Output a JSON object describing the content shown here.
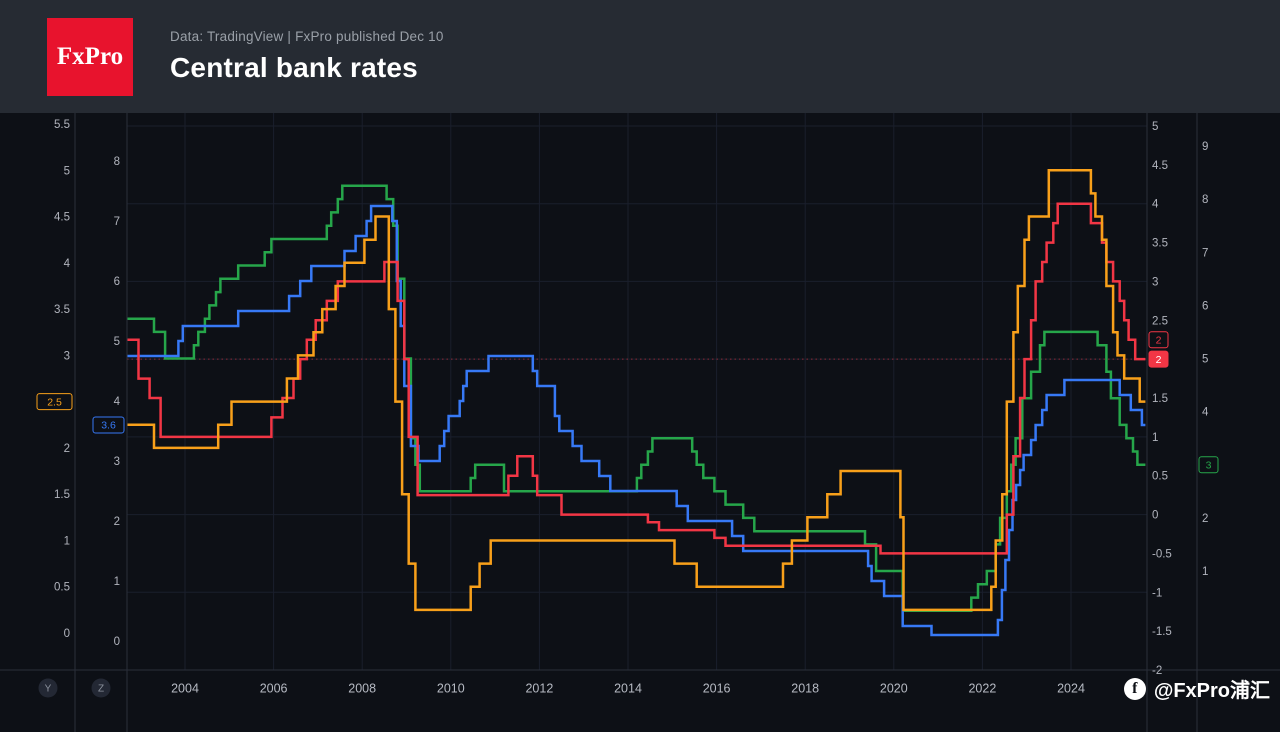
{
  "header": {
    "logo_text": "FxPro",
    "meta": "Data: TradingView  |  FxPro published Dec 10",
    "title": "Central bank rates"
  },
  "watermark": {
    "icon": "facebook-icon",
    "handle": "@FxPro浦汇"
  },
  "scale_buttons": [
    "Y",
    "Z"
  ],
  "colors": {
    "background": "#0d1016",
    "header_bg": "#262b33",
    "logo_red": "#e8132d",
    "grid": "#1a1f2c",
    "separator": "#2a2f3a",
    "axis_text": "#b2b5be",
    "time_text": "#b6bac3",
    "price_line": "rgba(242,54,69,0.55)",
    "orange": "#f8a01a",
    "blue": "#3779f6",
    "green": "#26a64a",
    "red": "#f23645"
  },
  "chart_data": {
    "type": "line",
    "style": "step",
    "title": "Central bank rates",
    "grid": true,
    "legend_position": "none",
    "x_axis": {
      "years": [
        2004,
        2006,
        2008,
        2010,
        2012,
        2014,
        2016,
        2018,
        2020,
        2022,
        2024
      ],
      "range": [
        2002.7,
        2025.68
      ],
      "end": 2025.68
    },
    "price_line": {
      "axis": "R1",
      "value": 2,
      "style": "dotted"
    },
    "axes": [
      {
        "id": "L1",
        "side": "left",
        "position": "outer",
        "color_key": "orange",
        "range": [
          0,
          5.5
        ],
        "ticks": [
          5.5,
          5,
          4.5,
          4,
          3.5,
          3,
          2.5,
          2,
          1.5,
          1,
          0.5,
          0
        ],
        "badges": [
          {
            "text": "2.5",
            "value": 2.5,
            "style": "outline",
            "replaces_tick": true
          }
        ]
      },
      {
        "id": "L2",
        "side": "left",
        "position": "inner",
        "color_key": "blue",
        "range": [
          0,
          8
        ],
        "ticks": [
          8,
          7,
          6,
          5,
          4,
          3,
          2,
          1,
          0
        ],
        "badges": [
          {
            "text": "3.6",
            "value": 3.6,
            "style": "outline",
            "replaces_tick": false
          }
        ]
      },
      {
        "id": "R1",
        "side": "right",
        "position": "inner",
        "color_key": "red",
        "range": [
          -2,
          5
        ],
        "ticks": [
          5,
          4.5,
          4,
          3.5,
          3,
          2.5,
          2,
          1.5,
          1,
          0.5,
          0,
          -0.5,
          -1,
          -1.5,
          -2
        ],
        "badges": [
          {
            "text": "2",
            "value": 2.25,
            "style": "outline",
            "replaces_tick": false
          },
          {
            "text": "2",
            "value": 2,
            "style": "solid",
            "replaces_tick": true
          }
        ]
      },
      {
        "id": "R2",
        "side": "right",
        "position": "outer",
        "color_key": "green",
        "range": [
          1,
          9
        ],
        "ticks": [
          9,
          8,
          7,
          6,
          5,
          4,
          3,
          2,
          1
        ],
        "badges": [
          {
            "text": "3",
            "value": 3,
            "style": "outline",
            "replaces_tick": true
          }
        ]
      }
    ],
    "series": [
      {
        "id": "green-series",
        "color_key": "green",
        "axis": "R2",
        "last_value": 3,
        "points": [
          [
            2002.7,
            5.75
          ],
          [
            2003.3,
            5.5
          ],
          [
            2003.55,
            5
          ],
          [
            2004.2,
            5.25
          ],
          [
            2004.3,
            5.5
          ],
          [
            2004.45,
            5.75
          ],
          [
            2004.55,
            6
          ],
          [
            2004.7,
            6.25
          ],
          [
            2004.8,
            6.5
          ],
          [
            2005.2,
            6.75
          ],
          [
            2005.8,
            7
          ],
          [
            2005.95,
            7.25
          ],
          [
            2007.2,
            7.5
          ],
          [
            2007.3,
            7.75
          ],
          [
            2007.45,
            8
          ],
          [
            2007.55,
            8.25
          ],
          [
            2008.55,
            8
          ],
          [
            2008.7,
            7.5
          ],
          [
            2008.8,
            6.5
          ],
          [
            2008.95,
            5
          ],
          [
            2009.1,
            3.5
          ],
          [
            2009.2,
            3
          ],
          [
            2009.3,
            2.5
          ],
          [
            2010.45,
            2.75
          ],
          [
            2010.55,
            3
          ],
          [
            2011.2,
            2.5
          ],
          [
            2014.2,
            2.75
          ],
          [
            2014.3,
            3
          ],
          [
            2014.45,
            3.25
          ],
          [
            2014.55,
            3.5
          ],
          [
            2015.45,
            3.25
          ],
          [
            2015.55,
            3
          ],
          [
            2015.7,
            2.75
          ],
          [
            2015.95,
            2.5
          ],
          [
            2016.2,
            2.25
          ],
          [
            2016.6,
            2
          ],
          [
            2016.85,
            1.75
          ],
          [
            2019.35,
            1.5
          ],
          [
            2019.6,
            1
          ],
          [
            2020.2,
            0.25
          ],
          [
            2021.75,
            0.5
          ],
          [
            2021.9,
            0.75
          ],
          [
            2022.1,
            1
          ],
          [
            2022.3,
            1.5
          ],
          [
            2022.4,
            2
          ],
          [
            2022.55,
            2.5
          ],
          [
            2022.65,
            3
          ],
          [
            2022.75,
            3.5
          ],
          [
            2022.9,
            4.25
          ],
          [
            2023.1,
            4.75
          ],
          [
            2023.3,
            5.25
          ],
          [
            2023.4,
            5.5
          ],
          [
            2024.6,
            5.25
          ],
          [
            2024.8,
            4.75
          ],
          [
            2024.9,
            4.25
          ],
          [
            2025.1,
            3.75
          ],
          [
            2025.25,
            3.5
          ],
          [
            2025.4,
            3.25
          ],
          [
            2025.5,
            3
          ]
        ]
      },
      {
        "id": "blue-series",
        "color_key": "blue",
        "axis": "L2",
        "last_value": 3.6,
        "points": [
          [
            2002.7,
            4.75
          ],
          [
            2003.85,
            5
          ],
          [
            2003.95,
            5.25
          ],
          [
            2005.2,
            5.5
          ],
          [
            2006.35,
            5.75
          ],
          [
            2006.6,
            6
          ],
          [
            2006.85,
            6.25
          ],
          [
            2007.6,
            6.5
          ],
          [
            2007.85,
            6.75
          ],
          [
            2008.1,
            7
          ],
          [
            2008.2,
            7.25
          ],
          [
            2008.68,
            7
          ],
          [
            2008.78,
            6
          ],
          [
            2008.87,
            5.25
          ],
          [
            2008.95,
            4.25
          ],
          [
            2009.1,
            3.25
          ],
          [
            2009.27,
            3
          ],
          [
            2009.75,
            3.25
          ],
          [
            2009.85,
            3.5
          ],
          [
            2009.95,
            3.75
          ],
          [
            2010.2,
            4
          ],
          [
            2010.28,
            4.25
          ],
          [
            2010.36,
            4.5
          ],
          [
            2010.85,
            4.75
          ],
          [
            2011.85,
            4.5
          ],
          [
            2011.95,
            4.25
          ],
          [
            2012.35,
            3.75
          ],
          [
            2012.45,
            3.5
          ],
          [
            2012.75,
            3.25
          ],
          [
            2012.95,
            3
          ],
          [
            2013.35,
            2.75
          ],
          [
            2013.6,
            2.5
          ],
          [
            2015.1,
            2.25
          ],
          [
            2015.35,
            2
          ],
          [
            2016.35,
            1.75
          ],
          [
            2016.6,
            1.5
          ],
          [
            2019.42,
            1.25
          ],
          [
            2019.5,
            1
          ],
          [
            2019.78,
            0.75
          ],
          [
            2020.2,
            0.25
          ],
          [
            2020.85,
            0.1
          ],
          [
            2022.35,
            0.35
          ],
          [
            2022.44,
            0.85
          ],
          [
            2022.52,
            1.35
          ],
          [
            2022.6,
            1.85
          ],
          [
            2022.68,
            2.35
          ],
          [
            2022.76,
            2.6
          ],
          [
            2022.85,
            2.85
          ],
          [
            2022.93,
            3.1
          ],
          [
            2023.1,
            3.35
          ],
          [
            2023.2,
            3.6
          ],
          [
            2023.35,
            3.85
          ],
          [
            2023.45,
            4.1
          ],
          [
            2023.85,
            4.35
          ],
          [
            2025.1,
            4.1
          ],
          [
            2025.35,
            3.85
          ],
          [
            2025.6,
            3.6
          ]
        ]
      },
      {
        "id": "red-series",
        "color_key": "red",
        "axis": "R1",
        "last_value": 2,
        "points": [
          [
            2002.7,
            2.25
          ],
          [
            2002.95,
            1.75
          ],
          [
            2003.2,
            1.5
          ],
          [
            2003.45,
            1
          ],
          [
            2005.95,
            1.25
          ],
          [
            2006.2,
            1.5
          ],
          [
            2006.45,
            1.75
          ],
          [
            2006.6,
            2
          ],
          [
            2006.75,
            2.25
          ],
          [
            2006.95,
            2.5
          ],
          [
            2007.2,
            2.75
          ],
          [
            2007.45,
            3
          ],
          [
            2008.5,
            3.25
          ],
          [
            2008.8,
            2.75
          ],
          [
            2008.95,
            2
          ],
          [
            2009.05,
            1
          ],
          [
            2009.25,
            0.25
          ],
          [
            2011.3,
            0.5
          ],
          [
            2011.5,
            0.75
          ],
          [
            2011.85,
            0.5
          ],
          [
            2011.95,
            0.25
          ],
          [
            2012.5,
            0
          ],
          [
            2014.45,
            -0.1
          ],
          [
            2014.7,
            -0.2
          ],
          [
            2015.95,
            -0.3
          ],
          [
            2016.2,
            -0.4
          ],
          [
            2019.7,
            -0.5
          ],
          [
            2022.55,
            0
          ],
          [
            2022.7,
            0.75
          ],
          [
            2022.85,
            1.5
          ],
          [
            2022.95,
            2
          ],
          [
            2023.1,
            2.5
          ],
          [
            2023.2,
            3
          ],
          [
            2023.35,
            3.25
          ],
          [
            2023.45,
            3.5
          ],
          [
            2023.6,
            3.75
          ],
          [
            2023.7,
            4
          ],
          [
            2024.45,
            3.75
          ],
          [
            2024.7,
            3.5
          ],
          [
            2024.8,
            3.25
          ],
          [
            2024.95,
            3
          ],
          [
            2025.1,
            2.75
          ],
          [
            2025.2,
            2.5
          ],
          [
            2025.3,
            2.25
          ],
          [
            2025.45,
            2
          ]
        ]
      },
      {
        "id": "orange-series",
        "color_key": "orange",
        "axis": "L1",
        "last_value": 2.5,
        "points": [
          [
            2002.7,
            2.25
          ],
          [
            2003.3,
            2
          ],
          [
            2004.75,
            2.25
          ],
          [
            2005.05,
            2.5
          ],
          [
            2006.3,
            2.75
          ],
          [
            2006.55,
            3
          ],
          [
            2006.9,
            3.25
          ],
          [
            2007.1,
            3.5
          ],
          [
            2007.4,
            3.75
          ],
          [
            2007.6,
            4
          ],
          [
            2008.05,
            4.25
          ],
          [
            2008.3,
            4.5
          ],
          [
            2008.6,
            3.5
          ],
          [
            2008.75,
            2.5
          ],
          [
            2008.9,
            1.5
          ],
          [
            2009.05,
            0.75
          ],
          [
            2009.2,
            0.25
          ],
          [
            2010.45,
            0.5
          ],
          [
            2010.65,
            0.75
          ],
          [
            2010.9,
            1
          ],
          [
            2015.05,
            0.75
          ],
          [
            2015.55,
            0.5
          ],
          [
            2017.5,
            0.75
          ],
          [
            2017.7,
            1
          ],
          [
            2018.05,
            1.25
          ],
          [
            2018.5,
            1.5
          ],
          [
            2018.8,
            1.75
          ],
          [
            2020.15,
            1.25
          ],
          [
            2020.22,
            0.25
          ],
          [
            2022.2,
            0.5
          ],
          [
            2022.3,
            1
          ],
          [
            2022.45,
            1.5
          ],
          [
            2022.55,
            2.5
          ],
          [
            2022.7,
            3.25
          ],
          [
            2022.8,
            3.75
          ],
          [
            2022.95,
            4.25
          ],
          [
            2023.05,
            4.5
          ],
          [
            2023.5,
            5
          ],
          [
            2024.45,
            4.75
          ],
          [
            2024.55,
            4.5
          ],
          [
            2024.7,
            4.25
          ],
          [
            2024.8,
            3.75
          ],
          [
            2024.95,
            3.25
          ],
          [
            2025.05,
            3
          ],
          [
            2025.2,
            2.75
          ],
          [
            2025.55,
            2.5
          ]
        ]
      }
    ]
  }
}
